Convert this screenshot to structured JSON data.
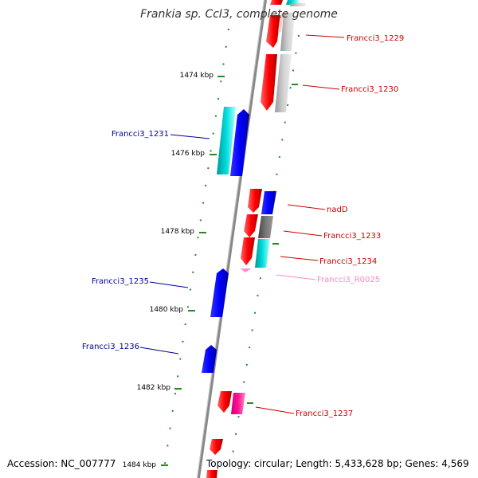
{
  "title": "Frankia sp. CcI3, complete genome",
  "accession_text": "Accession: NC_007777",
  "topology_text": "Topology: circular; Length: 5,433,628 bp; Genes: 4,569",
  "colors": {
    "forward_red": "#ff0000",
    "reverse_blue": "#0000ff",
    "cyan": "#00c8c8",
    "gray": "#b4b4b4",
    "dark_gray": "#646464",
    "magenta": "#ff1493",
    "pink": "#ff99cc",
    "tick_green": "#228b22",
    "label_red": "#cc0000",
    "label_blue": "#000099",
    "label_pink": "#ff88bb"
  },
  "kbp_ticks": [
    "1474 kbp",
    "1476 kbp",
    "1478 kbp",
    "1480 kbp",
    "1482 kbp",
    "1484 kbp"
  ],
  "gene_labels": [
    {
      "name": "Francci3_1229",
      "color": "label_red"
    },
    {
      "name": "Francci3_1230",
      "color": "label_red"
    },
    {
      "name": "Francci3_1231",
      "color": "label_blue"
    },
    {
      "name": "nadD",
      "color": "label_red"
    },
    {
      "name": "Francci3_1233",
      "color": "label_red"
    },
    {
      "name": "Francci3_1234",
      "color": "label_red"
    },
    {
      "name": "Francci3_R0025",
      "color": "label_pink"
    },
    {
      "name": "Francci3_1235",
      "color": "label_blue"
    },
    {
      "name": "Francci3_1236",
      "color": "label_blue"
    },
    {
      "name": "Francci3_1237",
      "color": "label_red"
    }
  ]
}
